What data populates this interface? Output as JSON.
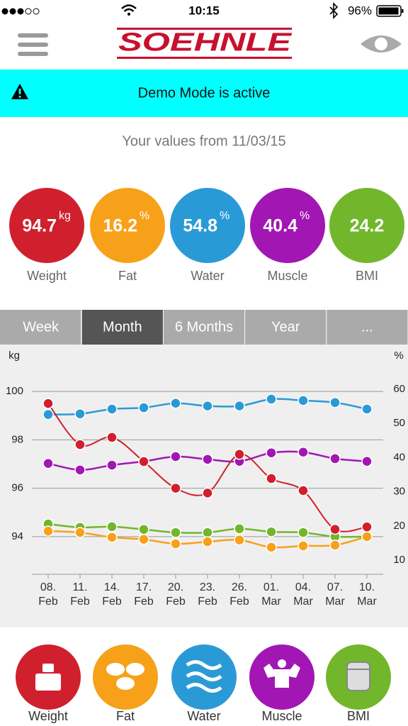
{
  "status_bar": {
    "time": "10:15",
    "battery": "96%"
  },
  "header": {
    "logo": "SOEHNLE"
  },
  "banner": {
    "text": "Demo Mode is active"
  },
  "summary": {
    "title": "Your values from 11/03/15",
    "metrics": [
      {
        "value": 94.7,
        "unit": "kg",
        "label": "Weight",
        "color": "#d0202e"
      },
      {
        "value": 16.2,
        "unit": "%",
        "label": "Fat",
        "color": "#f7a11a"
      },
      {
        "value": 54.8,
        "unit": "%",
        "label": "Water",
        "color": "#2a9ad6"
      },
      {
        "value": 40.4,
        "unit": "%",
        "label": "Muscle",
        "color": "#a216b4"
      },
      {
        "value": 24.2,
        "label": "BMI",
        "color": "#72b62c"
      }
    ]
  },
  "tabs": {
    "items": [
      "Week",
      "Month",
      "6 Months",
      "Year",
      "..."
    ],
    "selected": 1
  },
  "chart_data": {
    "type": "line",
    "y_unit_label": "kg",
    "y2_unit_label": "%",
    "categories": [
      [
        "08.",
        "Feb"
      ],
      [
        "11.",
        "Feb"
      ],
      [
        "14.",
        "Feb"
      ],
      [
        "17.",
        "Feb"
      ],
      [
        "20.",
        "Feb"
      ],
      [
        "23.",
        "Feb"
      ],
      [
        "26.",
        "Feb"
      ],
      [
        "01.",
        "Mar"
      ],
      [
        "04.",
        "Mar"
      ],
      [
        "07.",
        "Mar"
      ],
      [
        "10.",
        "Mar"
      ]
    ],
    "ylim": [
      92.5,
      100.5
    ],
    "yticks": [
      94,
      96,
      98,
      100
    ],
    "y2lim": [
      6.3,
      62.9
    ],
    "y2ticks": [
      10,
      20,
      30,
      40,
      50,
      60
    ],
    "grid": true,
    "series": [
      {
        "color": "#72b62c",
        "axis": "y2",
        "values": [
          20.6,
          19.6,
          19.8,
          19.0,
          18.1,
          18.1,
          19.2,
          18.3,
          18.1,
          16.9,
          16.9
        ]
      },
      {
        "color": "#f7a11a",
        "axis": "y2",
        "values": [
          18.5,
          18.1,
          16.7,
          16.1,
          14.8,
          15.4,
          15.9,
          13.8,
          14.2,
          14.4,
          16.9
        ]
      },
      {
        "color": "#a216b4",
        "axis": "y2",
        "values": [
          38.3,
          36.4,
          37.8,
          38.9,
          40.3,
          39.5,
          38.9,
          41.4,
          41.6,
          39.7,
          38.9
        ]
      },
      {
        "color": "#2a9ad6",
        "axis": "y2",
        "values": [
          52.6,
          52.8,
          54.2,
          54.6,
          55.9,
          55.1,
          55.1,
          57.1,
          56.7,
          56.1,
          54.2
        ]
      },
      {
        "color": "#d0202e",
        "values": [
          99.5,
          97.8,
          98.1,
          97.1,
          96.0,
          95.8,
          97.4,
          96.4,
          95.9,
          94.3,
          94.4
        ]
      }
    ]
  },
  "bottom_nav": {
    "items": [
      "Weight",
      "Fat",
      "Water",
      "Muscle",
      "BMI"
    ]
  }
}
